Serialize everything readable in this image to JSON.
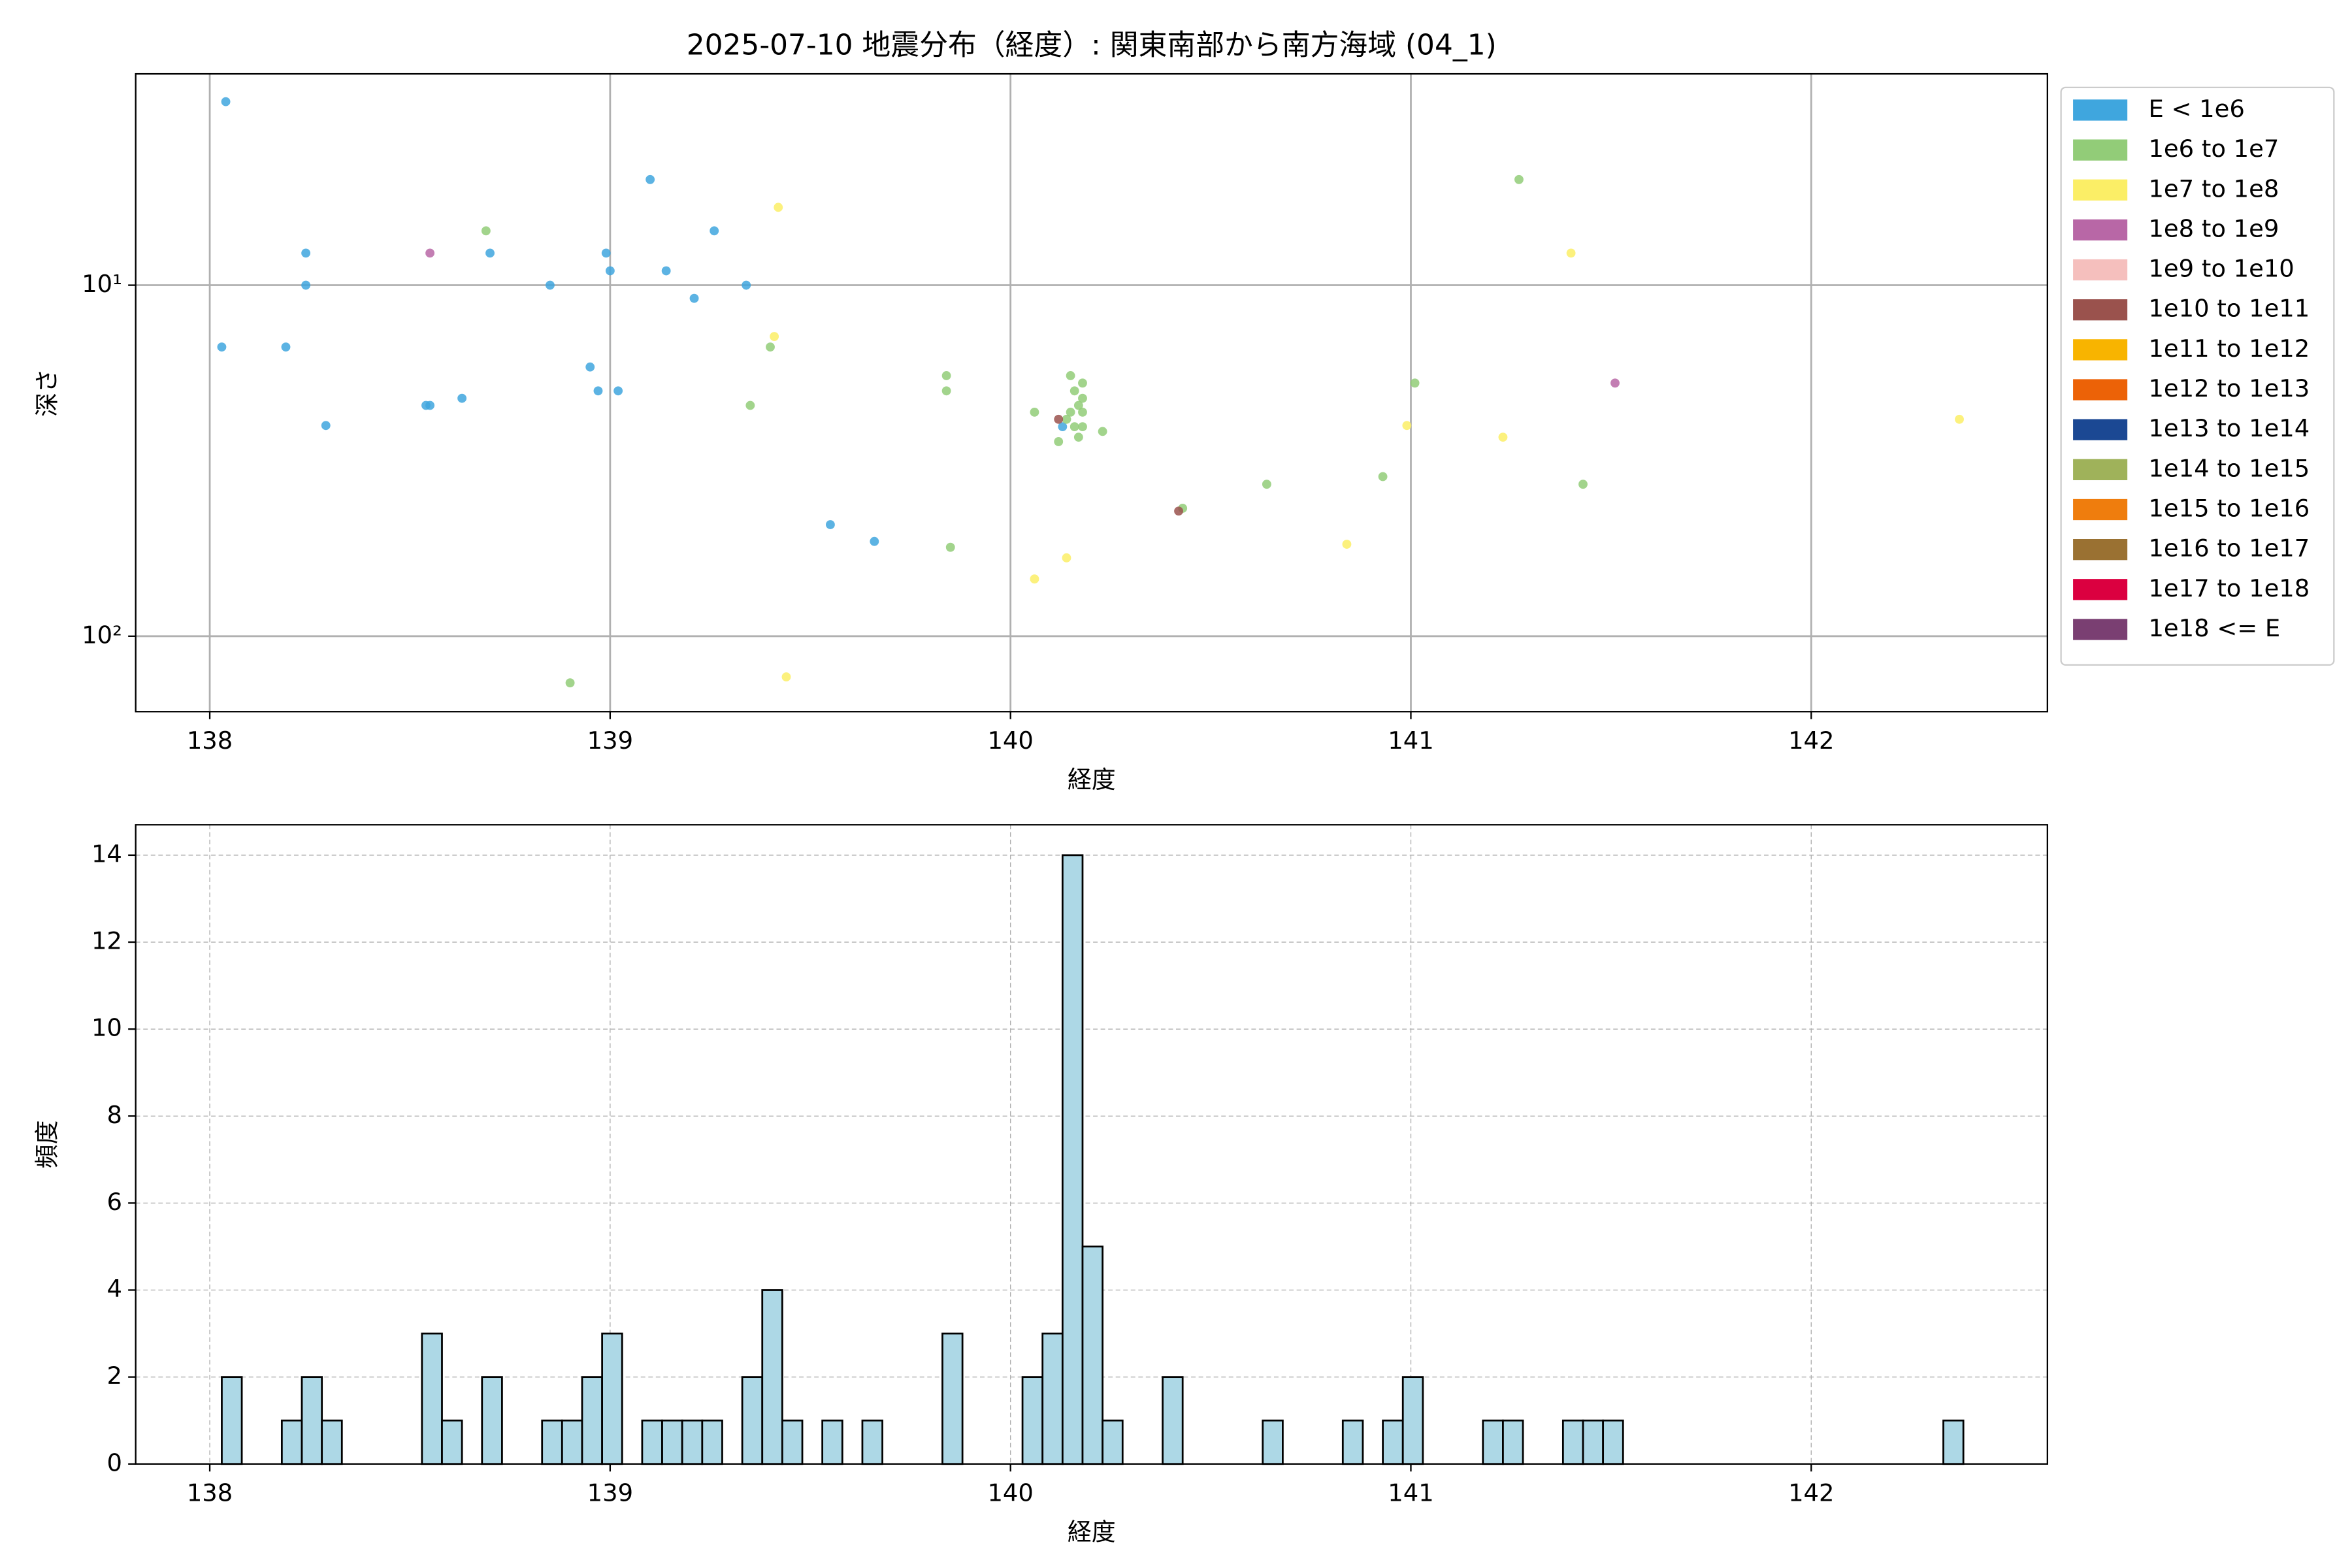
{
  "chart_data": [
    {
      "type": "scatter",
      "title": "2025-07-10 地震分布（経度）: 関東南部から南方海域 (04_1)",
      "xlabel": "経度",
      "ylabel": "深さ",
      "xlim": [
        137.815,
        142.59
      ],
      "xticks": [
        138,
        139,
        140,
        141,
        142
      ],
      "ylim": [
        2.5,
        164
      ],
      "yscale": "log",
      "yinvert": true,
      "yticks": [
        {
          "value": 10,
          "label": "10¹"
        },
        {
          "value": 100,
          "label": "10²"
        }
      ],
      "grid": true,
      "grid_style": "solid",
      "legend": "outside-upper-right",
      "series": [
        {
          "name": "E < 1e6",
          "color": "#3fa6de",
          "x": [
            138.04,
            138.03,
            138.19,
            138.24,
            138.24,
            138.29,
            138.54,
            138.55,
            138.63,
            138.7,
            138.85,
            138.95,
            138.97,
            138.99,
            139.0,
            139.02,
            139.1,
            139.14,
            139.21,
            139.26,
            139.34,
            139.55,
            139.66,
            140.13
          ],
          "values": [
            3.0,
            15.0,
            15.0,
            8.1,
            10.0,
            25.1,
            22.0,
            22.0,
            21.0,
            8.1,
            10.0,
            17.1,
            20.0,
            8.1,
            9.1,
            20.0,
            5.0,
            9.1,
            10.9,
            7.0,
            10.0,
            48.1,
            53.7,
            25.3
          ]
        },
        {
          "name": "1e6 to 1e7",
          "color": "#92cc78",
          "x": [
            138.69,
            139.4,
            139.35,
            139.84,
            139.84,
            139.85,
            138.9,
            140.06,
            140.15,
            140.16,
            140.18,
            140.18,
            140.17,
            140.18,
            140.15,
            140.14,
            140.16,
            140.18,
            140.17,
            140.12,
            140.23,
            140.43,
            140.64,
            140.93,
            141.01,
            141.27,
            141.43
          ],
          "values": [
            7.0,
            15.0,
            22.0,
            18.1,
            20.0,
            55.8,
            135.8,
            23.0,
            18.1,
            20.0,
            19.0,
            21.0,
            22.0,
            23.0,
            23.0,
            24.1,
            25.3,
            25.3,
            27.1,
            27.9,
            26.1,
            43.2,
            36.9,
            35.1,
            19.0,
            5.0,
            36.9
          ]
        },
        {
          "name": "1e7 to 1e8",
          "color": "#fbee66",
          "x": [
            139.42,
            139.41,
            139.44,
            140.06,
            140.14,
            140.84,
            140.99,
            141.23,
            141.4,
            142.37
          ],
          "values": [
            6.0,
            14.0,
            130.6,
            68.7,
            59.8,
            54.7,
            25.1,
            27.1,
            8.1,
            24.1
          ]
        },
        {
          "name": "1e8 to 1e9",
          "color": "#b867a6",
          "x": [
            138.55,
            141.51
          ],
          "values": [
            8.1,
            19.0
          ]
        },
        {
          "name": "1e9 to 1e10",
          "color": "#f5bfbd",
          "x": [],
          "values": []
        },
        {
          "name": "1e10 to 1e11",
          "color": "#9a524d",
          "x": [
            140.12,
            140.42
          ],
          "values": [
            24.1,
            44.0
          ]
        },
        {
          "name": "1e11 to 1e12",
          "color": "#f8b400",
          "x": [],
          "values": []
        },
        {
          "name": "1e12 to 1e13",
          "color": "#ec6207",
          "x": [],
          "values": []
        },
        {
          "name": "1e13 to 1e14",
          "color": "#1b4893",
          "x": [],
          "values": []
        },
        {
          "name": "1e14 to 1e15",
          "color": "#9fb25a",
          "x": [],
          "values": []
        },
        {
          "name": "1e15 to 1e16",
          "color": "#ef7d0d",
          "x": [],
          "values": []
        },
        {
          "name": "1e16 to 1e17",
          "color": "#9a7132",
          "x": [],
          "values": []
        },
        {
          "name": "1e17 to 1e18",
          "color": "#db0040",
          "x": [],
          "values": []
        },
        {
          "name": "1e18 <= E",
          "color": "#7a3f72",
          "x": [],
          "values": []
        }
      ]
    },
    {
      "type": "histogram",
      "xlabel": "経度",
      "ylabel": "頻度",
      "xlim": [
        137.815,
        142.59
      ],
      "xticks": [
        138,
        139,
        140,
        141,
        142
      ],
      "ylim": [
        0,
        14.7
      ],
      "yticks": [
        0,
        2,
        4,
        6,
        8,
        10,
        12,
        14
      ],
      "grid": true,
      "grid_style": "dashed",
      "color": "#add8e6",
      "edgecolor": "#000000",
      "bins": [
        138.03,
        138.08,
        138.13,
        138.18,
        138.23,
        138.28,
        138.33,
        138.38,
        138.43,
        138.48,
        138.53,
        138.58,
        138.63,
        138.68,
        138.73,
        138.78,
        138.83,
        138.88,
        138.93,
        138.98,
        139.03,
        139.08,
        139.13,
        139.18,
        139.23,
        139.28,
        139.33,
        139.38,
        139.43,
        139.48,
        139.53,
        139.58,
        139.63,
        139.68,
        139.73,
        139.78,
        139.83,
        139.88,
        139.93,
        139.98,
        140.03,
        140.08,
        140.13,
        140.18,
        140.23,
        140.28,
        140.33,
        140.38,
        140.43,
        140.48,
        140.53,
        140.58,
        140.63,
        140.68,
        140.73,
        140.78,
        140.83,
        140.88,
        140.93,
        140.98,
        141.03,
        141.08,
        141.13,
        141.18,
        141.23,
        141.28,
        141.33,
        141.38,
        141.43,
        141.48,
        141.53,
        141.58,
        141.63,
        141.68,
        141.73,
        141.78,
        141.83,
        141.88,
        141.93,
        141.98,
        142.03,
        142.08,
        142.13,
        142.18,
        142.23,
        142.28,
        142.33,
        142.38
      ],
      "values": [
        2,
        0,
        0,
        1,
        2,
        1,
        0,
        0,
        0,
        0,
        3,
        1,
        0,
        2,
        0,
        0,
        1,
        1,
        2,
        3,
        0,
        1,
        1,
        1,
        1,
        0,
        2,
        4,
        1,
        0,
        1,
        0,
        1,
        0,
        0,
        0,
        3,
        0,
        0,
        0,
        2,
        3,
        14,
        5,
        1,
        0,
        0,
        2,
        0,
        0,
        0,
        0,
        1,
        0,
        0,
        0,
        1,
        0,
        1,
        2,
        0,
        0,
        0,
        1,
        1,
        0,
        0,
        1,
        1,
        1,
        0,
        0,
        0,
        0,
        0,
        0,
        0,
        0,
        0,
        0,
        0,
        0,
        0,
        0,
        0,
        0,
        1
      ]
    }
  ]
}
